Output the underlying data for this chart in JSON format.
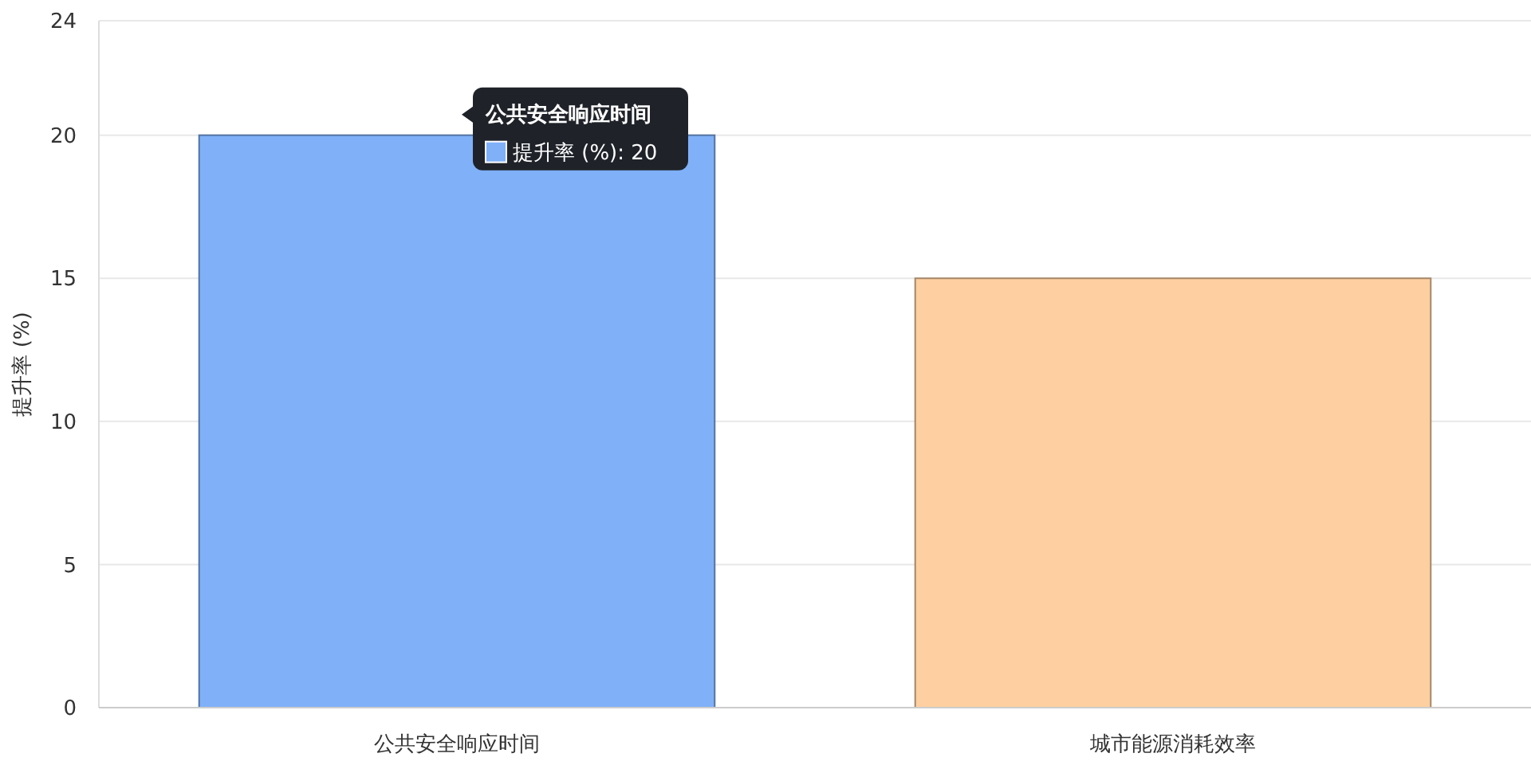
{
  "chart_data": {
    "type": "bar",
    "ylabel": "提升率 (%)",
    "categories": [
      "公共安全响应时间",
      "城市能源消耗效率"
    ],
    "values": [
      20,
      15
    ],
    "colors": [
      "#80b0f8",
      "#fecfa0"
    ],
    "ylim": [
      0,
      24
    ],
    "yticks": [
      0,
      5,
      10,
      15,
      20,
      24
    ],
    "grid": "y",
    "annotations": [
      {
        "text": "公共安全响应时间",
        "x": "公共安全响应时间",
        "y": 20
      },
      {
        "text": "提升率 (%): 20",
        "x": "公共安全响应时间",
        "y": 20
      }
    ]
  }
}
